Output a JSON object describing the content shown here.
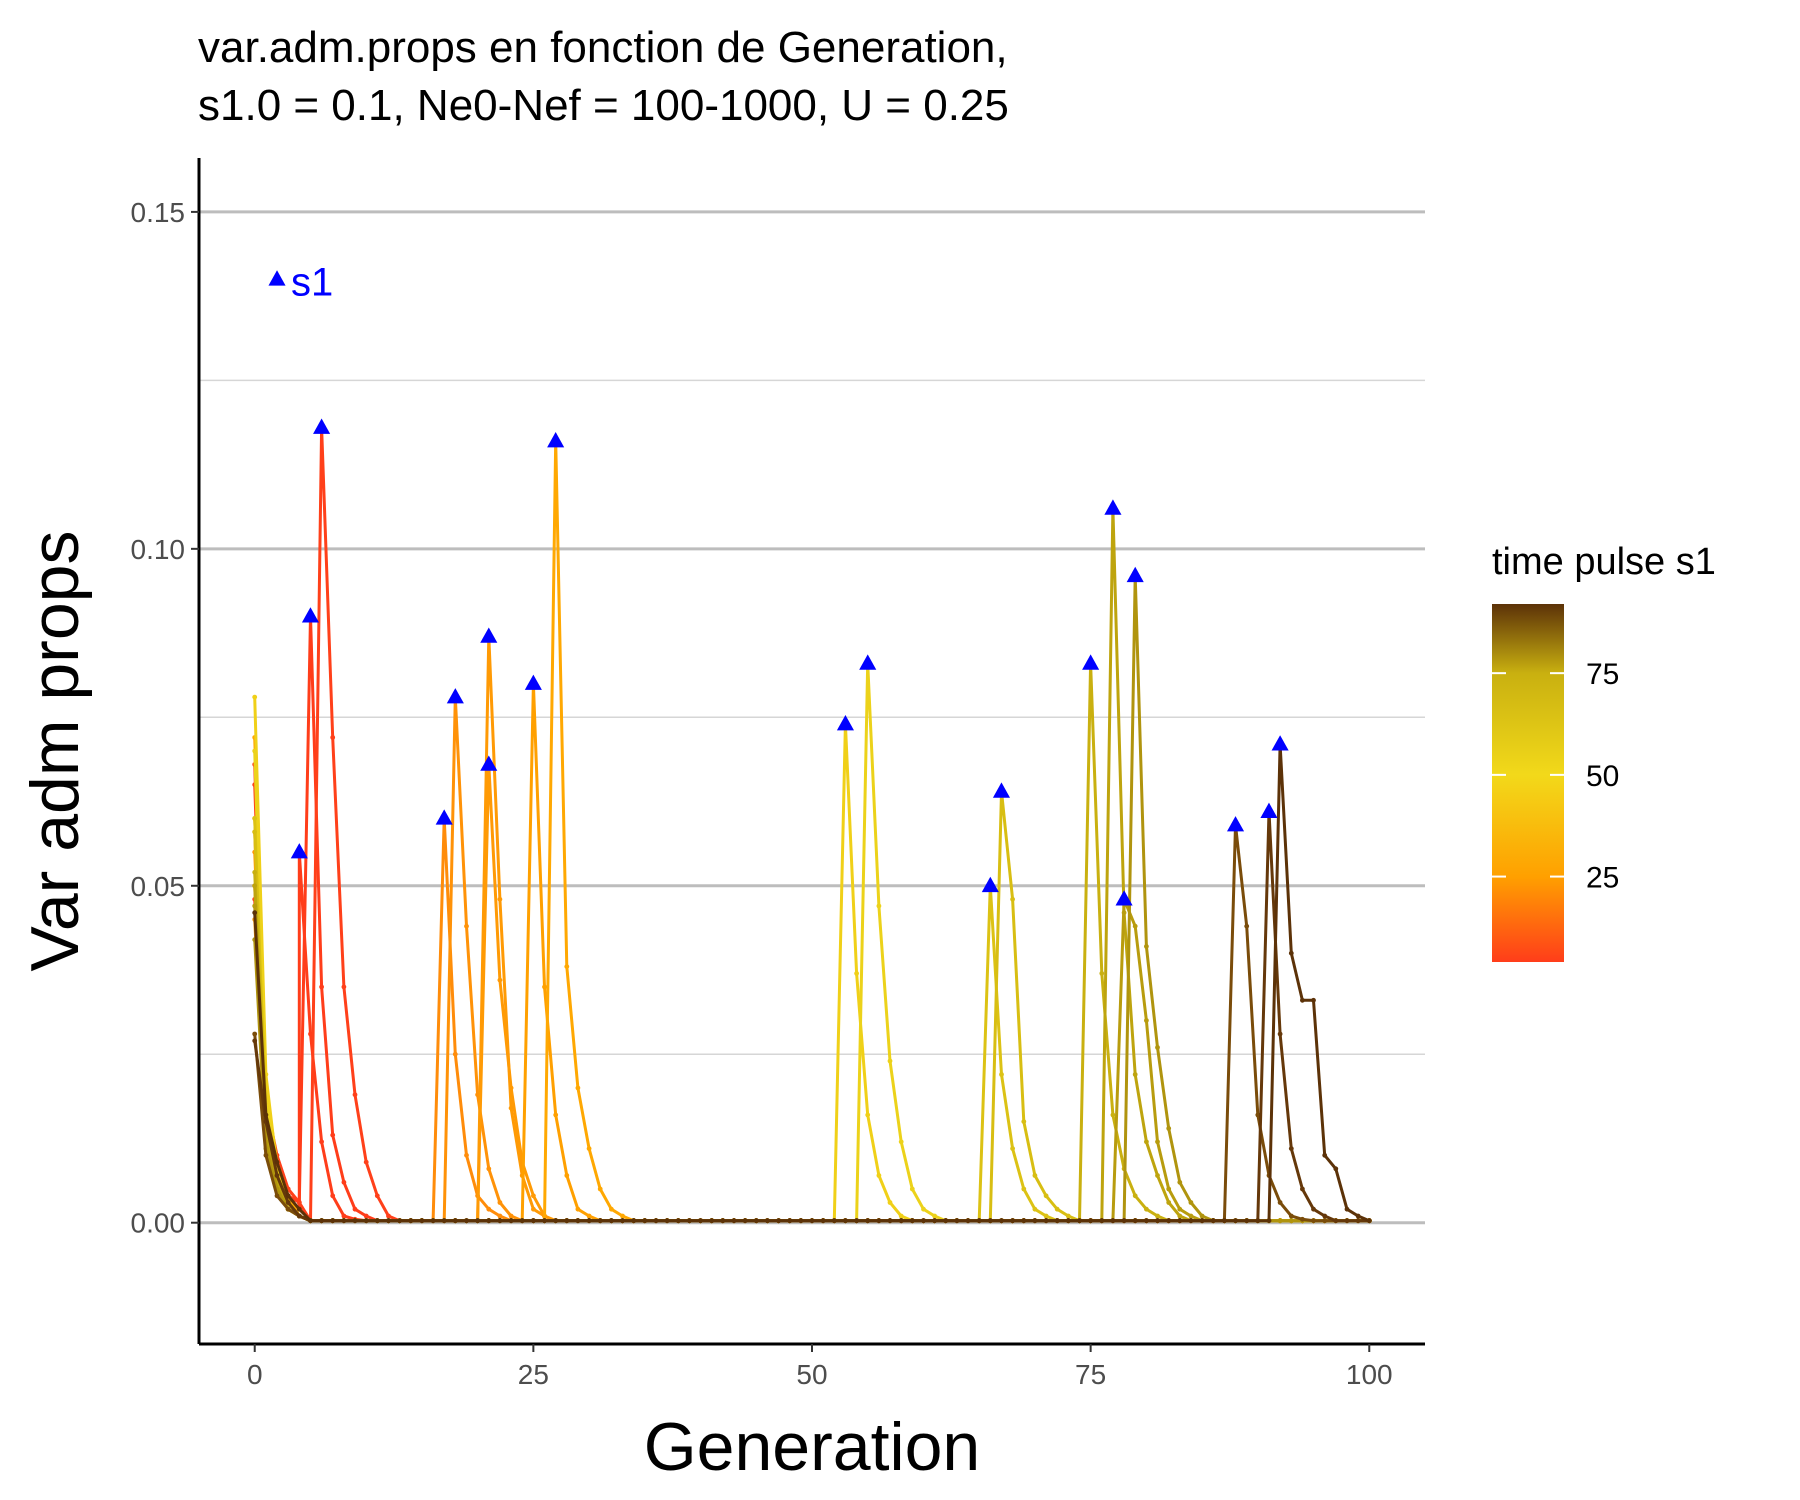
{
  "chart_data": {
    "type": "line",
    "title_line1": "var.adm.props en fonction de Generation,",
    "title_line2": "s1.0 = 0.1, Ne0-Nef = 100-1000, U = 0.25",
    "xlabel": "Generation",
    "ylabel": "Var adm props",
    "xlim": [
      -5,
      105
    ],
    "ylim": [
      -0.018,
      0.158
    ],
    "x_ticks": [
      {
        "value": 0,
        "label": "0"
      },
      {
        "value": 25,
        "label": "25"
      },
      {
        "value": 50,
        "label": "50"
      },
      {
        "value": 75,
        "label": "75"
      },
      {
        "value": 100,
        "label": "100"
      }
    ],
    "y_ticks": [
      {
        "value": 0,
        "label": "0.00"
      },
      {
        "value": 0.05,
        "label": "0.05"
      },
      {
        "value": 0.1,
        "label": "0.10"
      },
      {
        "value": 0.15,
        "label": "0.15"
      }
    ],
    "y_minor_gridlines": [
      0.025,
      0.075,
      0.125
    ],
    "grid": "horizontal",
    "marker_legend": {
      "symbol": "triangle",
      "label": "s1",
      "color": "#0000ff",
      "x": 2,
      "y": 0.14
    },
    "colorbar": {
      "title": "time pulse s1",
      "ticks": [
        {
          "value": 25,
          "label": "25"
        },
        {
          "value": 50,
          "label": "50"
        },
        {
          "value": 75,
          "label": "75"
        }
      ],
      "range": [
        4,
        92
      ],
      "stops": [
        {
          "value": 4,
          "color": "#ff3d1a"
        },
        {
          "value": 25,
          "color": "#ffa000"
        },
        {
          "value": 50,
          "color": "#f2d91a"
        },
        {
          "value": 75,
          "color": "#c9b010"
        },
        {
          "value": 92,
          "color": "#5c3208"
        }
      ],
      "placement": "right"
    },
    "series": [
      {
        "pulse": 4,
        "color": "#ff3d1a",
        "initial": [
          0.048,
          0.012,
          0.005,
          0.003,
          0.002
        ],
        "peak_x": 4,
        "peak": 0.055,
        "decay": [
          0.028,
          0.012,
          0.004,
          0.001,
          0.0005
        ]
      },
      {
        "pulse": 5,
        "color": "#ff3d1a",
        "initial": [
          0.068,
          0.015,
          0.008,
          0.004,
          0.003
        ],
        "peak_x": 5,
        "peak": 0.09,
        "decay": [
          0.035,
          0.013,
          0.006,
          0.002,
          0.001
        ]
      },
      {
        "pulse": 6,
        "color": "#ff401a",
        "initial": [
          0.065,
          0.018,
          0.01,
          0.005,
          0.003
        ],
        "peak_x": 6,
        "peak": 0.118,
        "decay": [
          0.072,
          0.035,
          0.019,
          0.009,
          0.004,
          0.001
        ]
      },
      {
        "pulse": 17,
        "color": "#ff8c0a",
        "initial": [
          0.058,
          0.014,
          0.006,
          0.003,
          0.001
        ],
        "peak_x": 17,
        "peak": 0.06,
        "decay": [
          0.025,
          0.01,
          0.004,
          0.002,
          0.001
        ]
      },
      {
        "pulse": 18,
        "color": "#ff9208",
        "initial": [
          0.05,
          0.013,
          0.006,
          0.002,
          0.001
        ],
        "peak_x": 18,
        "peak": 0.078,
        "decay": [
          0.044,
          0.019,
          0.008,
          0.003,
          0.001
        ]
      },
      {
        "pulse": 21,
        "color": "#ff9a05",
        "initial": [
          0.055,
          0.015,
          0.007,
          0.003,
          0.001
        ],
        "peak_x": 21,
        "peak": 0.087,
        "decay": [
          0.048,
          0.017,
          0.007,
          0.002,
          0.001
        ]
      },
      {
        "pulse": 21,
        "color": "#ff9a05",
        "initial": [
          0.045,
          0.012,
          0.005,
          0.002,
          0.001
        ],
        "peak_x": 21,
        "peak": 0.068,
        "decay": [
          0.036,
          0.02,
          0.009,
          0.004,
          0.001
        ]
      },
      {
        "pulse": 25,
        "color": "#ffa000",
        "initial": [
          0.06,
          0.016,
          0.007,
          0.003,
          0.001
        ],
        "peak_x": 25,
        "peak": 0.08,
        "decay": [
          0.035,
          0.016,
          0.007,
          0.002,
          0.001
        ]
      },
      {
        "pulse": 27,
        "color": "#ffa802",
        "initial": [
          0.072,
          0.02,
          0.009,
          0.004,
          0.001
        ],
        "peak_x": 27,
        "peak": 0.116,
        "decay": [
          0.038,
          0.02,
          0.011,
          0.005,
          0.002,
          0.001
        ]
      },
      {
        "pulse": 53,
        "color": "#f0d018",
        "initial": [
          0.078,
          0.022,
          0.008,
          0.003,
          0.001
        ],
        "peak_x": 53,
        "peak": 0.074,
        "decay": [
          0.037,
          0.016,
          0.007,
          0.003,
          0.001
        ]
      },
      {
        "pulse": 55,
        "color": "#ecd21a",
        "initial": [
          0.07,
          0.018,
          0.008,
          0.003,
          0.001
        ],
        "peak_x": 55,
        "peak": 0.083,
        "decay": [
          0.047,
          0.024,
          0.012,
          0.005,
          0.002,
          0.001
        ]
      },
      {
        "pulse": 66,
        "color": "#dcc214",
        "initial": [
          0.06,
          0.015,
          0.006,
          0.002,
          0.001
        ],
        "peak_x": 66,
        "peak": 0.05,
        "decay": [
          0.022,
          0.011,
          0.005,
          0.002,
          0.001
        ]
      },
      {
        "pulse": 67,
        "color": "#d8be12",
        "initial": [
          0.058,
          0.016,
          0.007,
          0.003,
          0.001
        ],
        "peak_x": 67,
        "peak": 0.064,
        "decay": [
          0.048,
          0.015,
          0.007,
          0.004,
          0.002,
          0.001
        ]
      },
      {
        "pulse": 75,
        "color": "#c9b010",
        "initial": [
          0.052,
          0.014,
          0.006,
          0.002,
          0.001
        ],
        "peak_x": 75,
        "peak": 0.083,
        "decay": [
          0.037,
          0.016,
          0.008,
          0.004,
          0.002,
          0.001
        ]
      },
      {
        "pulse": 77,
        "color": "#bea40e",
        "initial": [
          0.05,
          0.013,
          0.006,
          0.002,
          0.001
        ],
        "peak_x": 77,
        "peak": 0.106,
        "decay": [
          0.046,
          0.022,
          0.012,
          0.007,
          0.003,
          0.001
        ]
      },
      {
        "pulse": 78,
        "color": "#b89c0e",
        "initial": [
          0.047,
          0.012,
          0.005,
          0.002,
          0.001
        ],
        "peak_x": 78,
        "peak": 0.048,
        "decay": [
          0.044,
          0.03,
          0.012,
          0.005,
          0.002,
          0.001
        ]
      },
      {
        "pulse": 79,
        "color": "#b0940e",
        "initial": [
          0.042,
          0.011,
          0.005,
          0.002,
          0.001
        ],
        "peak_x": 79,
        "peak": 0.096,
        "decay": [
          0.041,
          0.026,
          0.014,
          0.006,
          0.003,
          0.001
        ]
      },
      {
        "pulse": 88,
        "color": "#7a4c0a",
        "initial": [
          0.028,
          0.01,
          0.004,
          0.002,
          0.001
        ],
        "peak_x": 88,
        "peak": 0.059,
        "decay": [
          0.044,
          0.016,
          0.007,
          0.003,
          0.001,
          0.0005
        ]
      },
      {
        "pulse": 91,
        "color": "#65380a",
        "initial": [
          0.027,
          0.015,
          0.007,
          0.003,
          0.001
        ],
        "peak_x": 91,
        "peak": 0.061,
        "decay": [
          0.028,
          0.011,
          0.005,
          0.002,
          0.001
        ]
      },
      {
        "pulse": 92,
        "color": "#5c3208",
        "initial": [
          0.046,
          0.016,
          0.009,
          0.004,
          0.002
        ],
        "peak_x": 92,
        "peak": 0.071,
        "decay": [
          0.04,
          0.033,
          0.033,
          0.01,
          0.008,
          0.002,
          0.001
        ]
      }
    ]
  }
}
